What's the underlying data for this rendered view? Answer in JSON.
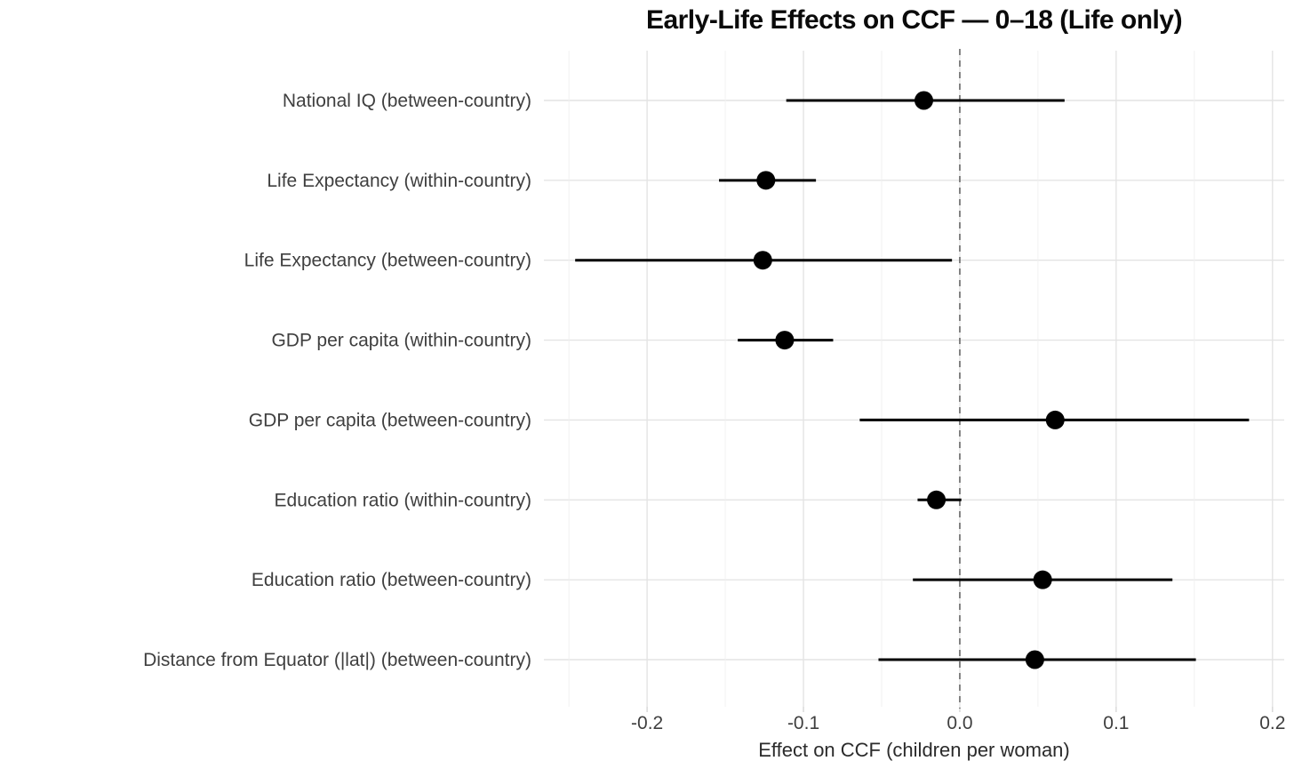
{
  "page": {
    "background": "#ffffff"
  },
  "chart_data": {
    "type": "scatter",
    "variant": "forest-dot-whisker",
    "title": "Early-Life Effects on CCF — 0–18 (Life only)",
    "xlabel": "Effect on CCF (children per woman)",
    "ylabel": "",
    "legend": "none",
    "grid": "on",
    "categories": [
      "National IQ (between-country)",
      "Life Expectancy (within-country)",
      "Life Expectancy (between-country)",
      "GDP per capita (within-country)",
      "GDP per capita (between-country)",
      "Education ratio (within-country)",
      "Education ratio (between-country)",
      "Distance from Equator (|lat|) (between-country)"
    ],
    "points": [
      {
        "label": "National IQ (between-country)",
        "estimate": -0.023,
        "ci_low": -0.111,
        "ci_high": 0.067
      },
      {
        "label": "Life Expectancy (within-country)",
        "estimate": -0.124,
        "ci_low": -0.154,
        "ci_high": -0.092
      },
      {
        "label": "Life Expectancy (between-country)",
        "estimate": -0.126,
        "ci_low": -0.246,
        "ci_high": -0.005
      },
      {
        "label": "GDP per capita (within-country)",
        "estimate": -0.112,
        "ci_low": -0.142,
        "ci_high": -0.081
      },
      {
        "label": "GDP per capita (between-country)",
        "estimate": 0.061,
        "ci_low": -0.064,
        "ci_high": 0.185
      },
      {
        "label": "Education ratio (within-country)",
        "estimate": -0.015,
        "ci_low": -0.027,
        "ci_high": 0.001
      },
      {
        "label": "Education ratio (between-country)",
        "estimate": 0.053,
        "ci_low": -0.03,
        "ci_high": 0.136
      },
      {
        "label": "Distance from Equator (|lat|) (between-country)",
        "estimate": 0.048,
        "ci_low": -0.052,
        "ci_high": 0.151
      }
    ],
    "x_ticks": [
      -0.2,
      -0.1,
      0.0,
      0.1,
      0.2
    ],
    "x_tick_labels": [
      "-0.2",
      "-0.1",
      "0.0",
      "0.1",
      "0.2"
    ],
    "x_minor_ticks": [
      -0.25,
      -0.15,
      -0.05,
      0.05,
      0.15
    ],
    "xlim": [
      -0.266,
      0.2075
    ],
    "zero_line_x": 0,
    "colors": {
      "point": "#000000",
      "ci": "#000000",
      "grid_major": "#e4e4e4",
      "grid_minor": "#f0f0f0",
      "tick_stub": "#d6d6d6",
      "zero_line": "#707070",
      "axis_text": "#3f3f3f",
      "title": "#0a0a0a"
    }
  }
}
